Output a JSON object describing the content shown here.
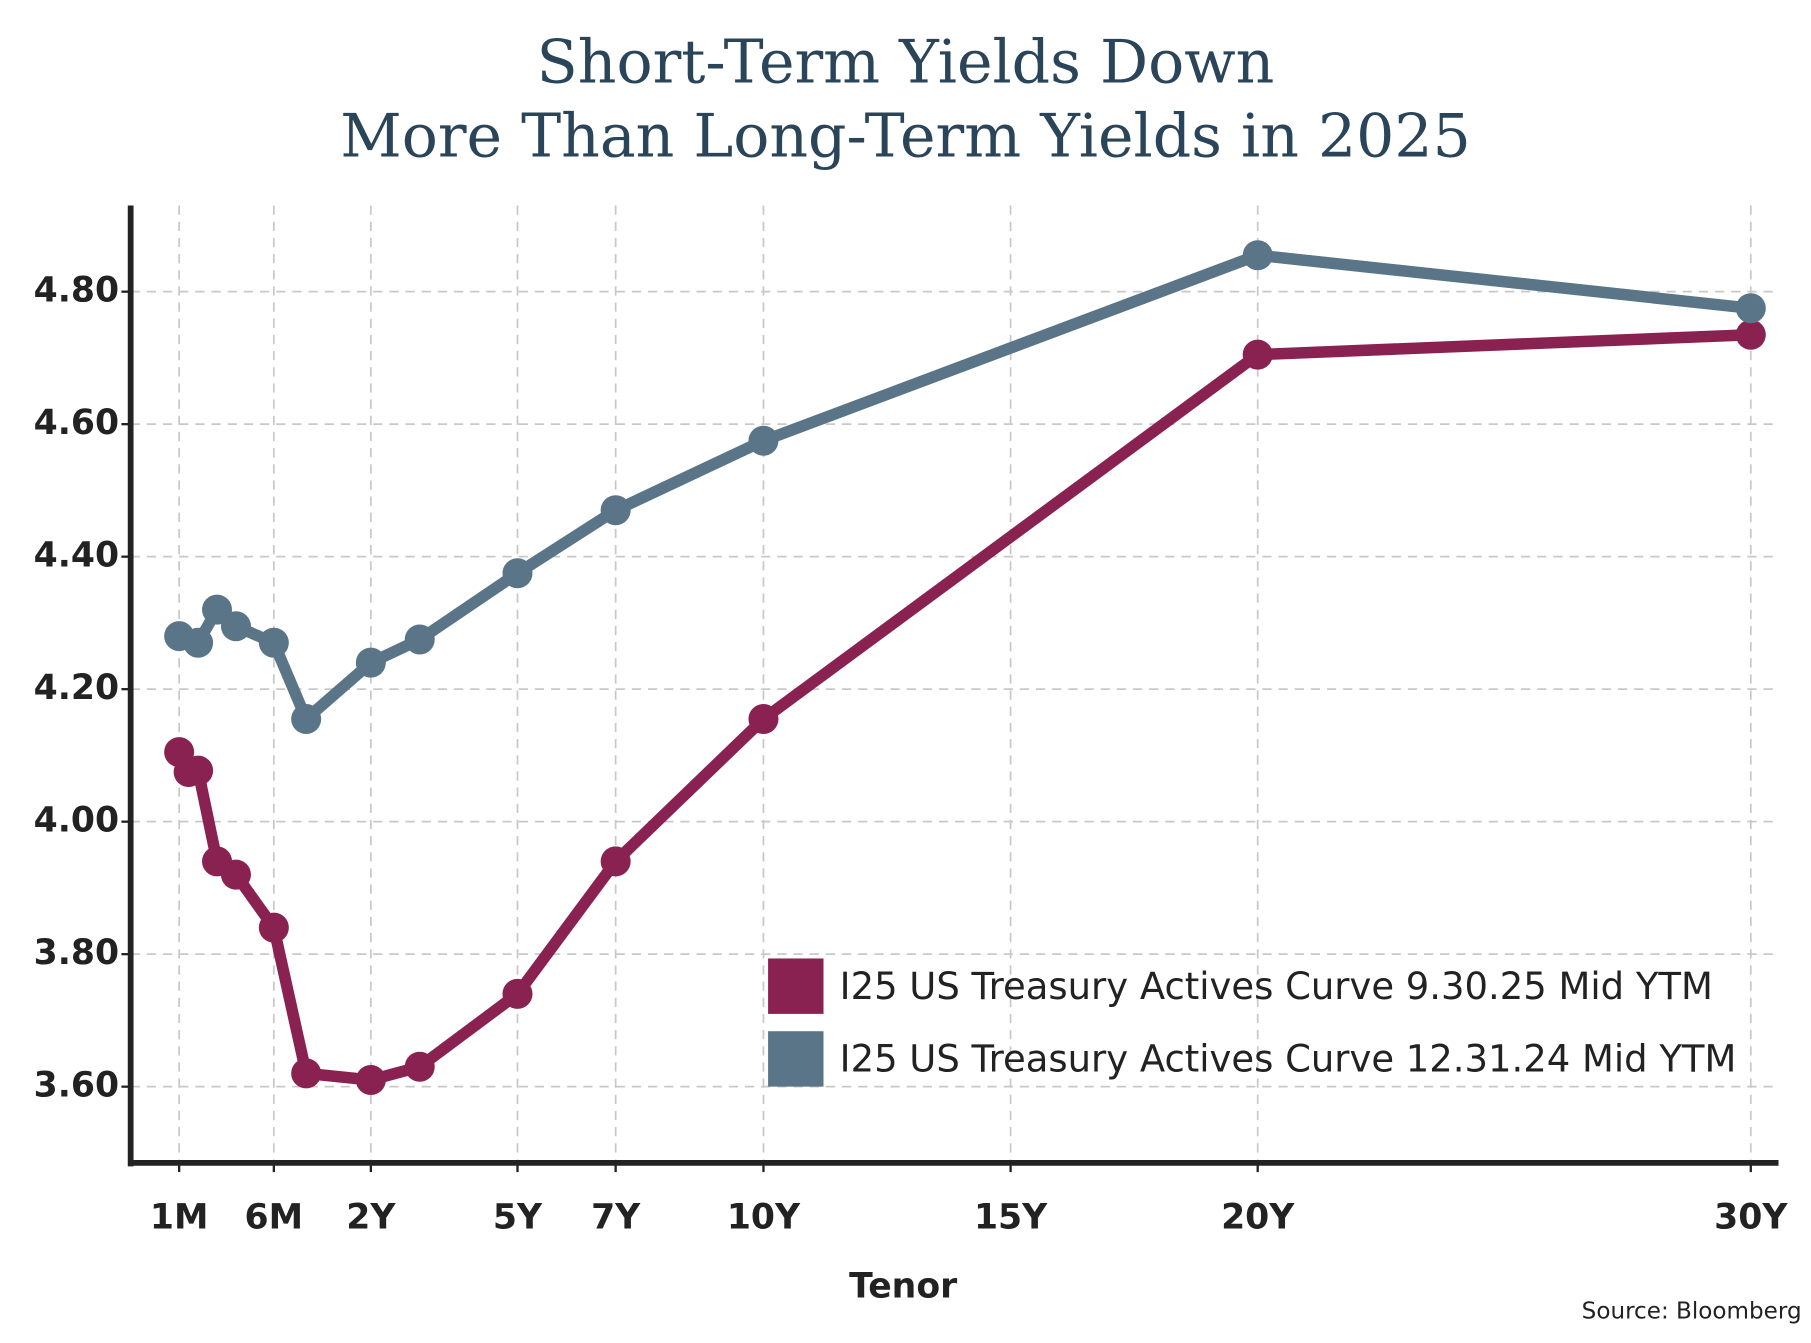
{
  "chart_data": {
    "type": "line",
    "title": [
      "Short-Term Yields Down",
      "More Than Long-Term Yields in 2025"
    ],
    "x_label": "Tenor",
    "source": "Source: Bloomberg",
    "xlim": [
      -0.13,
      30.56
    ],
    "xticks": [
      {
        "value": 0.0833,
        "label": "1M"
      },
      {
        "value": 0.5,
        "label": "6M"
      },
      {
        "value": 2,
        "label": "2Y"
      },
      {
        "value": 5,
        "label": "5Y"
      },
      {
        "value": 7,
        "label": "7Y"
      },
      {
        "value": 10,
        "label": "10Y"
      },
      {
        "value": 15,
        "label": "15Y"
      },
      {
        "value": 20,
        "label": "20Y"
      },
      {
        "value": 30,
        "label": "30Y"
      }
    ],
    "ylim": [
      3.485,
      4.93
    ],
    "yticks": [
      {
        "value": 3.6,
        "label": "3.60"
      },
      {
        "value": 3.8,
        "label": "3.80"
      },
      {
        "value": 4.0,
        "label": "4.00"
      },
      {
        "value": 4.2,
        "label": "4.20"
      },
      {
        "value": 4.4,
        "label": "4.40"
      },
      {
        "value": 4.6,
        "label": "4.60"
      },
      {
        "value": 4.8,
        "label": "4.80"
      }
    ],
    "grid": true,
    "legend": "lower right",
    "series": [
      {
        "name": "I25 US Treasury Actives Curve 9.30.25 Mid YTM",
        "color": "#8a2251",
        "x": [
          0.0833,
          0.125,
          0.1667,
          0.25,
          0.3333,
          0.5,
          1,
          2,
          3,
          5,
          7,
          10,
          20,
          30
        ],
        "values": [
          4.105,
          4.075,
          4.077,
          3.94,
          3.92,
          3.84,
          3.62,
          3.61,
          3.63,
          3.74,
          3.94,
          4.155,
          4.705,
          4.735
        ]
      },
      {
        "name": "I25 US Treasury Actives Curve 12.31.24 Mid YTM",
        "color": "#5a7588",
        "x": [
          0.0833,
          0.1667,
          0.25,
          0.3333,
          0.5,
          1,
          2,
          3,
          5,
          7,
          10,
          20,
          30
        ],
        "values": [
          4.28,
          4.27,
          4.32,
          4.295,
          4.27,
          4.155,
          4.24,
          4.275,
          4.375,
          4.47,
          4.575,
          4.855,
          4.775
        ]
      }
    ]
  }
}
